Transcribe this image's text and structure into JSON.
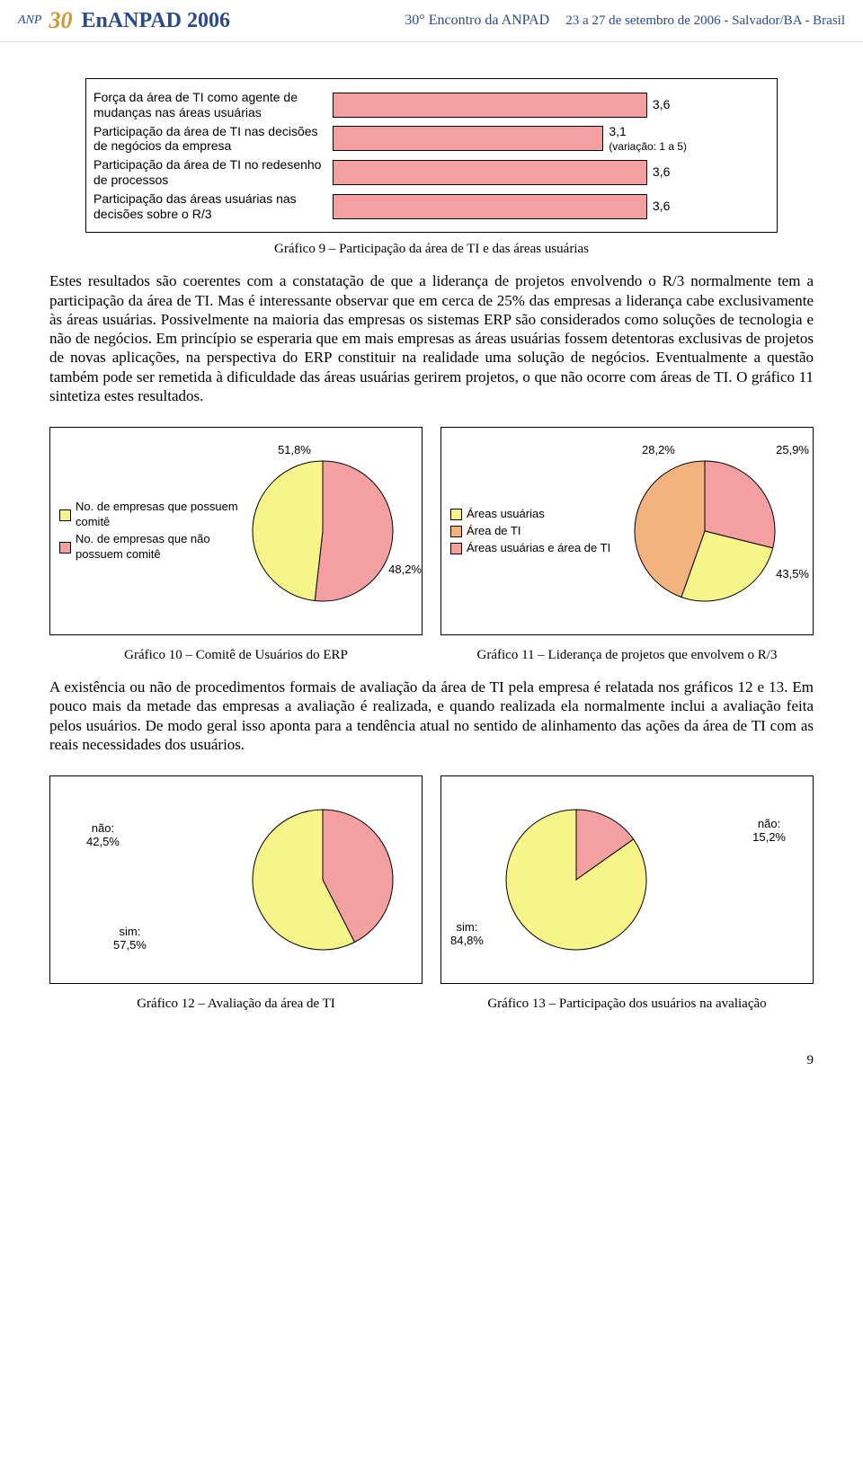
{
  "header": {
    "logo_prefix": "ANP",
    "thirty": "30",
    "title": "EnANPAD 2006",
    "sub1": "30° Encontro da ANPAD",
    "sub2": "23 a 27 de setembro de 2006 - Salvador/BA - Brasil"
  },
  "colors": {
    "bar_fill": "#f4a0a0",
    "pie_yellow": "#f7f48a",
    "pie_pink": "#f4a0a0",
    "pie_orange": "#f2b37f",
    "border": "#000000"
  },
  "bar_chart": {
    "max": 5,
    "caption": "Gráfico 9 – Participação da área de TI e das áreas usuárias",
    "rows": [
      {
        "label": "Força da área de TI como agente de mudanças nas áreas usuárias",
        "value": 3.6,
        "display": "3,6",
        "extra": ""
      },
      {
        "label": "Participação da área de TI nas decisões de negócios da empresa",
        "value": 3.1,
        "display": "3,1",
        "extra": "(variação: 1 a 5)"
      },
      {
        "label": "Participação da área de TI no redesenho de processos",
        "value": 3.6,
        "display": "3,6",
        "extra": ""
      },
      {
        "label": "Participação das áreas usuárias nas decisões sobre o R/3",
        "value": 3.6,
        "display": "3,6",
        "extra": ""
      }
    ]
  },
  "para1": "Estes resultados são coerentes com a constatação de que a liderança de projetos envolvendo o R/3 normalmente tem a participação da área de TI. Mas é interessante observar que em cerca de 25% das empresas a liderança cabe exclusivamente às áreas usuárias. Possivelmente na maioria das empresas os sistemas ERP são considerados como soluções de tecnologia e não de negócios. Em princípio se esperaria que em mais empresas as áreas usuárias fossem detentoras exclusivas de projetos de novas aplicações, na perspectiva do ERP constituir na realidade uma solução de negócios. Eventualmente a questão também pode ser remetida à dificuldade das áreas usuárias gerirem projetos, o que não ocorre com áreas de TI. O gráfico 11 sintetiza estes resultados.",
  "pie10": {
    "caption": "Gráfico 10 – Comitê de Usuários do ERP",
    "slices": [
      {
        "label": "No. de empresas que possuem comitê",
        "value": 48.2,
        "display": "48,2%",
        "color": "#f7f48a"
      },
      {
        "label": "No. de empresas que não possuem comitê",
        "value": 51.8,
        "display": "51,8%",
        "color": "#f4a0a0"
      }
    ]
  },
  "pie11": {
    "caption": "Gráfico 11 – Liderança de projetos que envolvem o R/3",
    "slices": [
      {
        "label": "Áreas usuárias",
        "value": 25.9,
        "display": "25,9%",
        "color": "#f7f48a"
      },
      {
        "label": "Área de TI",
        "value": 43.5,
        "display": "43,5%",
        "color": "#f2b37f"
      },
      {
        "label": "Áreas usuárias e área de TI",
        "value": 28.2,
        "display": "28,2%",
        "color": "#f4a0a0"
      }
    ]
  },
  "para2": "A existência ou não de procedimentos formais de avaliação da área de TI pela empresa é relatada nos gráficos 12 e 13. Em pouco mais da metade das empresas a avaliação é realizada, e quando realizada ela normalmente inclui a avaliação feita pelos usuários. De modo geral isso aponta para a tendência atual no sentido de alinhamento das ações da área de TI com as reais necessidades dos usuários.",
  "pie12": {
    "caption": "Gráfico 12 – Avaliação da área de TI",
    "slices": [
      {
        "label": "não:",
        "value": 42.5,
        "display": "42,5%",
        "color": "#f4a0a0"
      },
      {
        "label": "sim:",
        "value": 57.5,
        "display": "57,5%",
        "color": "#f7f48a"
      }
    ]
  },
  "pie13": {
    "caption": "Gráfico 13 – Participação dos usuários na avaliação",
    "slices": [
      {
        "label": "não:",
        "value": 15.2,
        "display": "15,2%",
        "color": "#f4a0a0"
      },
      {
        "label": "sim:",
        "value": 84.8,
        "display": "84,8%",
        "color": "#f7f48a"
      }
    ]
  },
  "page_number": "9"
}
